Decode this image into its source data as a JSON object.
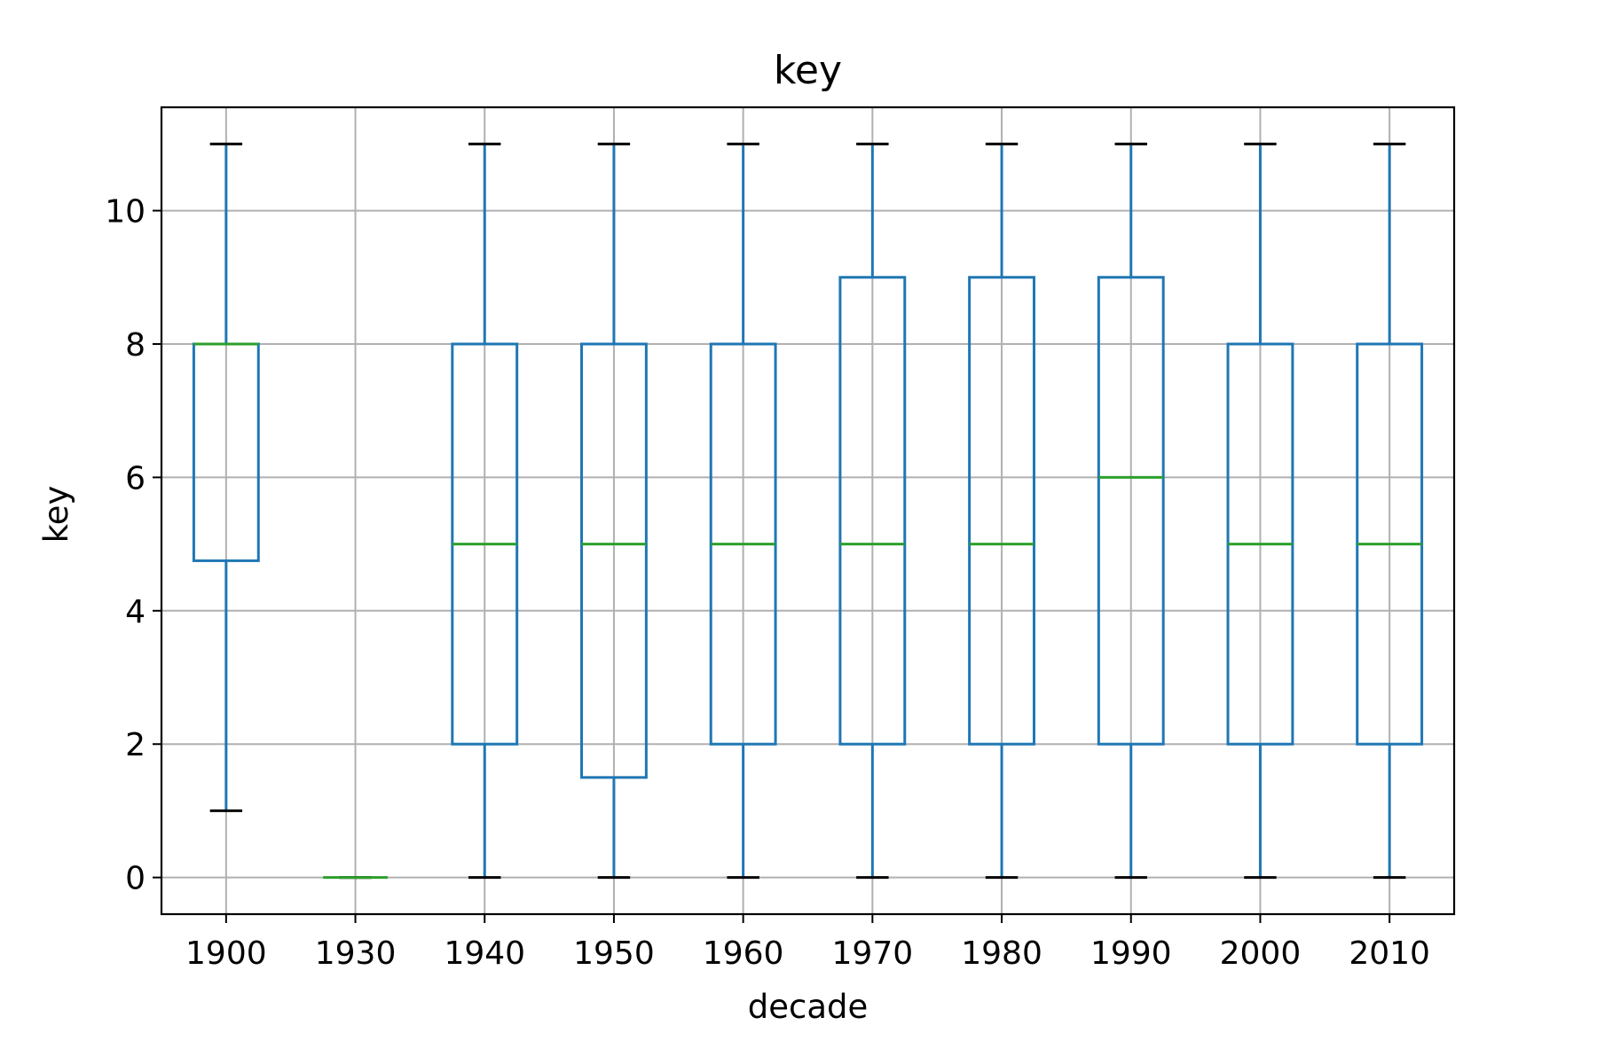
{
  "chart_data": {
    "type": "boxplot",
    "title": "key",
    "xlabel": "decade",
    "ylabel": "key",
    "ylim": [
      -0.55,
      11.55
    ],
    "yticks": [
      0,
      2,
      4,
      6,
      8,
      10
    ],
    "ytick_labels": [
      "0",
      "2",
      "4",
      "6",
      "8",
      "10"
    ],
    "grid": true,
    "colors": {
      "box": "#1f77b4",
      "median": "#2ca02c",
      "cap": "#000000",
      "grid": "#b0b0b0"
    },
    "categories": [
      "1900",
      "1930",
      "1940",
      "1950",
      "1960",
      "1970",
      "1980",
      "1990",
      "2000",
      "2010"
    ],
    "boxes": [
      {
        "label": "1900",
        "whislo": 1,
        "q1": 4.75,
        "med": 8,
        "q3": 8,
        "whishi": 11
      },
      {
        "label": "1930",
        "whislo": 0,
        "q1": 0,
        "med": 0,
        "q3": 0,
        "whishi": 0
      },
      {
        "label": "1940",
        "whislo": 0,
        "q1": 2,
        "med": 5,
        "q3": 8,
        "whishi": 11
      },
      {
        "label": "1950",
        "whislo": 0,
        "q1": 1.5,
        "med": 5,
        "q3": 8,
        "whishi": 11
      },
      {
        "label": "1960",
        "whislo": 0,
        "q1": 2,
        "med": 5,
        "q3": 8,
        "whishi": 11
      },
      {
        "label": "1970",
        "whislo": 0,
        "q1": 2,
        "med": 5,
        "q3": 9,
        "whishi": 11
      },
      {
        "label": "1980",
        "whislo": 0,
        "q1": 2,
        "med": 5,
        "q3": 9,
        "whishi": 11
      },
      {
        "label": "1990",
        "whislo": 0,
        "q1": 2,
        "med": 6,
        "q3": 9,
        "whishi": 11
      },
      {
        "label": "2000",
        "whislo": 0,
        "q1": 2,
        "med": 5,
        "q3": 8,
        "whishi": 11
      },
      {
        "label": "2010",
        "whislo": 0,
        "q1": 2,
        "med": 5,
        "q3": 8,
        "whishi": 11
      }
    ]
  }
}
